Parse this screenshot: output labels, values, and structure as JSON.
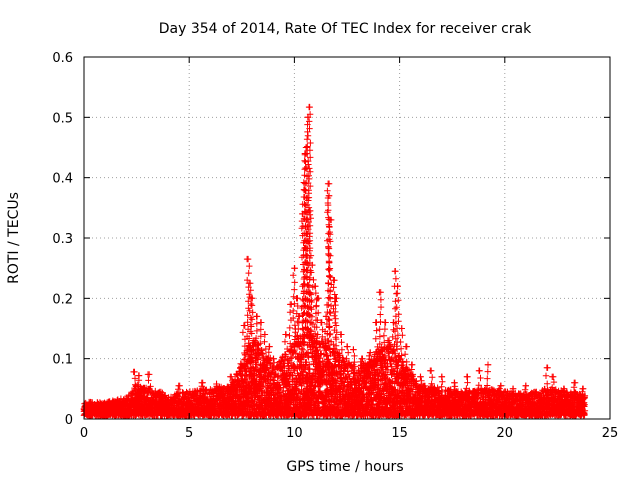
{
  "chart_data": {
    "type": "scatter",
    "title": "Day 354 of 2014, Rate Of TEC Index for receiver crak",
    "xlabel": "GPS time / hours",
    "ylabel": "ROTI / TECUs",
    "xlim": [
      0,
      25
    ],
    "ylim": [
      0,
      0.6
    ],
    "xticks": [
      0,
      5,
      10,
      15,
      20,
      25
    ],
    "yticks": [
      0,
      0.1,
      0.2,
      0.3,
      0.4,
      0.5,
      0.6
    ],
    "xtick_labels": [
      "0",
      "5",
      "10",
      "15",
      "20",
      "25"
    ],
    "ytick_labels": [
      "0",
      "0.1",
      "0.2",
      "0.3",
      "0.4",
      "0.5",
      "0.6"
    ],
    "grid": true,
    "marker": "+",
    "series": [
      {
        "name": "ROTI",
        "color": "#ff0000",
        "baseline_envelope": [
          [
            0.0,
            0.022
          ],
          [
            1.0,
            0.022
          ],
          [
            2.0,
            0.03
          ],
          [
            2.5,
            0.05
          ],
          [
            3.0,
            0.045
          ],
          [
            4.0,
            0.035
          ],
          [
            5.0,
            0.04
          ],
          [
            6.0,
            0.045
          ],
          [
            7.0,
            0.05
          ],
          [
            7.5,
            0.09
          ],
          [
            8.0,
            0.13
          ],
          [
            8.5,
            0.11
          ],
          [
            9.0,
            0.08
          ],
          [
            9.5,
            0.1
          ],
          [
            10.0,
            0.12
          ],
          [
            10.5,
            0.14
          ],
          [
            11.0,
            0.13
          ],
          [
            11.5,
            0.12
          ],
          [
            12.0,
            0.11
          ],
          [
            12.5,
            0.09
          ],
          [
            13.0,
            0.08
          ],
          [
            13.5,
            0.09
          ],
          [
            14.0,
            0.11
          ],
          [
            14.5,
            0.12
          ],
          [
            15.0,
            0.1
          ],
          [
            15.5,
            0.07
          ],
          [
            16.0,
            0.05
          ],
          [
            17.0,
            0.045
          ],
          [
            18.0,
            0.04
          ],
          [
            19.0,
            0.045
          ],
          [
            20.0,
            0.04
          ],
          [
            21.0,
            0.035
          ],
          [
            22.0,
            0.045
          ],
          [
            23.0,
            0.04
          ],
          [
            23.8,
            0.035
          ]
        ],
        "peaks": [
          [
            0.3,
            0.028
          ],
          [
            1.3,
            0.025
          ],
          [
            2.4,
            0.078
          ],
          [
            2.6,
            0.072
          ],
          [
            3.1,
            0.074
          ],
          [
            3.6,
            0.045
          ],
          [
            4.5,
            0.055
          ],
          [
            5.6,
            0.06
          ],
          [
            6.3,
            0.058
          ],
          [
            7.0,
            0.07
          ],
          [
            7.6,
            0.155
          ],
          [
            7.8,
            0.265
          ],
          [
            7.9,
            0.225
          ],
          [
            8.0,
            0.2
          ],
          [
            8.2,
            0.17
          ],
          [
            8.4,
            0.16
          ],
          [
            8.6,
            0.14
          ],
          [
            8.8,
            0.12
          ],
          [
            9.0,
            0.1
          ],
          [
            9.2,
            0.085
          ],
          [
            9.6,
            0.14
          ],
          [
            9.8,
            0.19
          ],
          [
            10.0,
            0.25
          ],
          [
            10.1,
            0.2
          ],
          [
            10.2,
            0.17
          ],
          [
            10.4,
            0.34
          ],
          [
            10.45,
            0.38
          ],
          [
            10.5,
            0.44
          ],
          [
            10.55,
            0.45
          ],
          [
            10.6,
            0.415
          ],
          [
            10.65,
            0.5
          ],
          [
            10.7,
            0.517
          ],
          [
            10.75,
            0.345
          ],
          [
            10.85,
            0.255
          ],
          [
            11.0,
            0.22
          ],
          [
            11.1,
            0.2
          ],
          [
            11.3,
            0.16
          ],
          [
            11.5,
            0.17
          ],
          [
            11.6,
            0.39
          ],
          [
            11.65,
            0.37
          ],
          [
            11.7,
            0.33
          ],
          [
            11.9,
            0.23
          ],
          [
            12.0,
            0.2
          ],
          [
            12.2,
            0.14
          ],
          [
            12.5,
            0.12
          ],
          [
            12.8,
            0.115
          ],
          [
            13.2,
            0.1
          ],
          [
            13.6,
            0.11
          ],
          [
            13.9,
            0.16
          ],
          [
            14.1,
            0.21
          ],
          [
            14.3,
            0.16
          ],
          [
            14.5,
            0.13
          ],
          [
            14.7,
            0.16
          ],
          [
            14.8,
            0.245
          ],
          [
            14.9,
            0.22
          ],
          [
            15.1,
            0.15
          ],
          [
            15.3,
            0.12
          ],
          [
            15.6,
            0.09
          ],
          [
            16.0,
            0.07
          ],
          [
            16.5,
            0.08
          ],
          [
            17.0,
            0.07
          ],
          [
            17.6,
            0.06
          ],
          [
            18.2,
            0.07
          ],
          [
            18.8,
            0.08
          ],
          [
            19.2,
            0.09
          ],
          [
            19.8,
            0.055
          ],
          [
            20.4,
            0.05
          ],
          [
            21.0,
            0.055
          ],
          [
            21.5,
            0.045
          ],
          [
            22.0,
            0.085
          ],
          [
            22.3,
            0.07
          ],
          [
            22.8,
            0.05
          ],
          [
            23.3,
            0.06
          ],
          [
            23.7,
            0.05
          ]
        ]
      }
    ]
  }
}
